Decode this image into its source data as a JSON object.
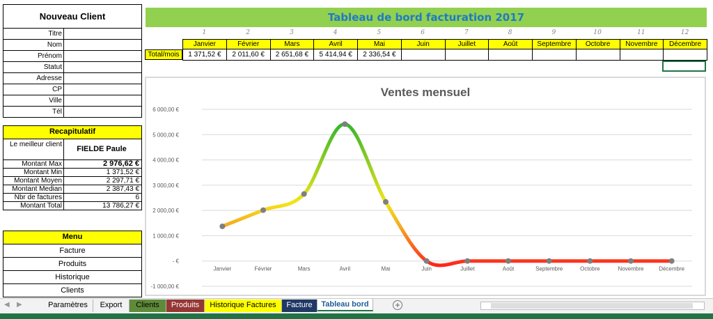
{
  "left_panel": {
    "title": "Nouveau Client",
    "fields": [
      "Titre",
      "Nom",
      "Prénom",
      "Statut",
      "Adresse",
      "CP",
      "Ville",
      "Tél"
    ],
    "recap": {
      "header": "Recapitulatif",
      "best_label": "Le meilleur client",
      "best_value": "FIELDE Paule",
      "rows": [
        {
          "label": "Montant Max",
          "value": "2 976,62 €",
          "bold": true
        },
        {
          "label": "Montant Min",
          "value": "1 371,52 €"
        },
        {
          "label": "Montant Moyen",
          "value": "2 297,71 €"
        },
        {
          "label": "Montant Median",
          "value": "2 387,43 €"
        },
        {
          "label": "Nbr de factures",
          "value": "6"
        },
        {
          "label": "Montant Total",
          "value": "13 786,27 €"
        }
      ]
    },
    "menu": {
      "header": "Menu",
      "items": [
        "Facture",
        "Produits",
        "Historique",
        "Clients"
      ]
    }
  },
  "dashboard": {
    "title": "Tableau de bord facturation 2017",
    "numbers": [
      "1",
      "2",
      "3",
      "4",
      "5",
      "6",
      "7",
      "8",
      "9",
      "10",
      "11",
      "12"
    ],
    "months": [
      "Janvier",
      "Février",
      "Mars",
      "Avril",
      "Mai",
      "Juin",
      "Juillet",
      "Août",
      "Septembre",
      "Octobre",
      "Novembre",
      "Décembre"
    ],
    "total_label": "Total/mois",
    "totals": [
      "1 371,52 €",
      "2 011,60 €",
      "2 651,68 €",
      "5 414,94 €",
      "2 336,54 €",
      "",
      "",
      "",
      "",
      "",
      "",
      ""
    ]
  },
  "chart_data": {
    "type": "line",
    "title": "Ventes mensuel",
    "categories": [
      "Janvier",
      "Février",
      "Mars",
      "Avril",
      "Mai",
      "Juin",
      "Juillet",
      "Août",
      "Septembre",
      "Octobre",
      "Novembre",
      "Décembre"
    ],
    "values": [
      1371.52,
      2011.6,
      2651.68,
      5414.94,
      2336.54,
      0,
      0,
      0,
      0,
      0,
      0,
      0
    ],
    "ylim": [
      -1000,
      6000
    ],
    "yticks": [
      6000,
      5000,
      4000,
      3000,
      2000,
      1000,
      0,
      -1000
    ],
    "ytick_labels": [
      "6 000,00 €",
      "5 000,00 €",
      "4 000,00 €",
      "3 000,00 €",
      "2 000,00 €",
      "1 000,00 €",
      "- €",
      "-1 000,00 €"
    ],
    "grid": true,
    "colors": {
      "high": "#2fb52f",
      "mid": "#f3e516",
      "low": "#ff1a1a",
      "marker": "#7f7f7f"
    }
  },
  "tabs": {
    "items": [
      {
        "label": "Paramètres",
        "bg": "#f2f2f2",
        "fg": "#000000"
      },
      {
        "label": "Export",
        "bg": "#f2f2f2",
        "fg": "#000000"
      },
      {
        "label": "Clients",
        "bg": "#5e8b3a",
        "fg": "#000000"
      },
      {
        "label": "Produits",
        "bg": "#953735",
        "fg": "#ffffff"
      },
      {
        "label": "Historique Factures",
        "bg": "#ffff00",
        "fg": "#000000"
      },
      {
        "label": "Facture",
        "bg": "#1f3864",
        "fg": "#ffffff"
      },
      {
        "label": "Tableau bord",
        "bg": "#ffffff",
        "fg": "#1f5c99",
        "active": true
      }
    ],
    "add_label": "+"
  },
  "colors": {
    "banner_green": "#92d050",
    "banner_text": "#1f7bc4",
    "yellow": "#ffff00",
    "status_bar": "#217346"
  }
}
